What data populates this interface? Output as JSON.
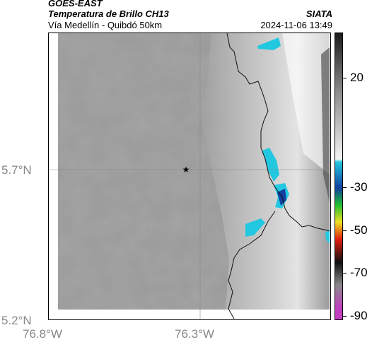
{
  "header": {
    "satellite": "GOES-EAST",
    "product": "Temperatura de Brillo CH13",
    "route": "Vía Medellín - Quibdó 50km",
    "agency": "SIATA",
    "datetime": "2024-11-06 13:49"
  },
  "axes": {
    "lat_labels": [
      "5.7°N",
      "5.2°N"
    ],
    "lon_labels": [
      "76.8°W",
      "76.3°W"
    ]
  },
  "colorbar": {
    "labels": [
      "20",
      "-30",
      "-50",
      "-70",
      "-90"
    ],
    "colors": {
      "dark": "#1a1a1a",
      "gray": "#8a8a8a",
      "white": "#f5f5f5",
      "cyan": "#22c8e0",
      "blue": "#1040a0",
      "green": "#20c030",
      "yellow": "#f0e020",
      "red": "#e02010",
      "black": "#101010",
      "magenta": "#c040c0"
    }
  },
  "map": {
    "marker_icon": "star-icon",
    "cold_cloud_color": "#22c8e0"
  }
}
